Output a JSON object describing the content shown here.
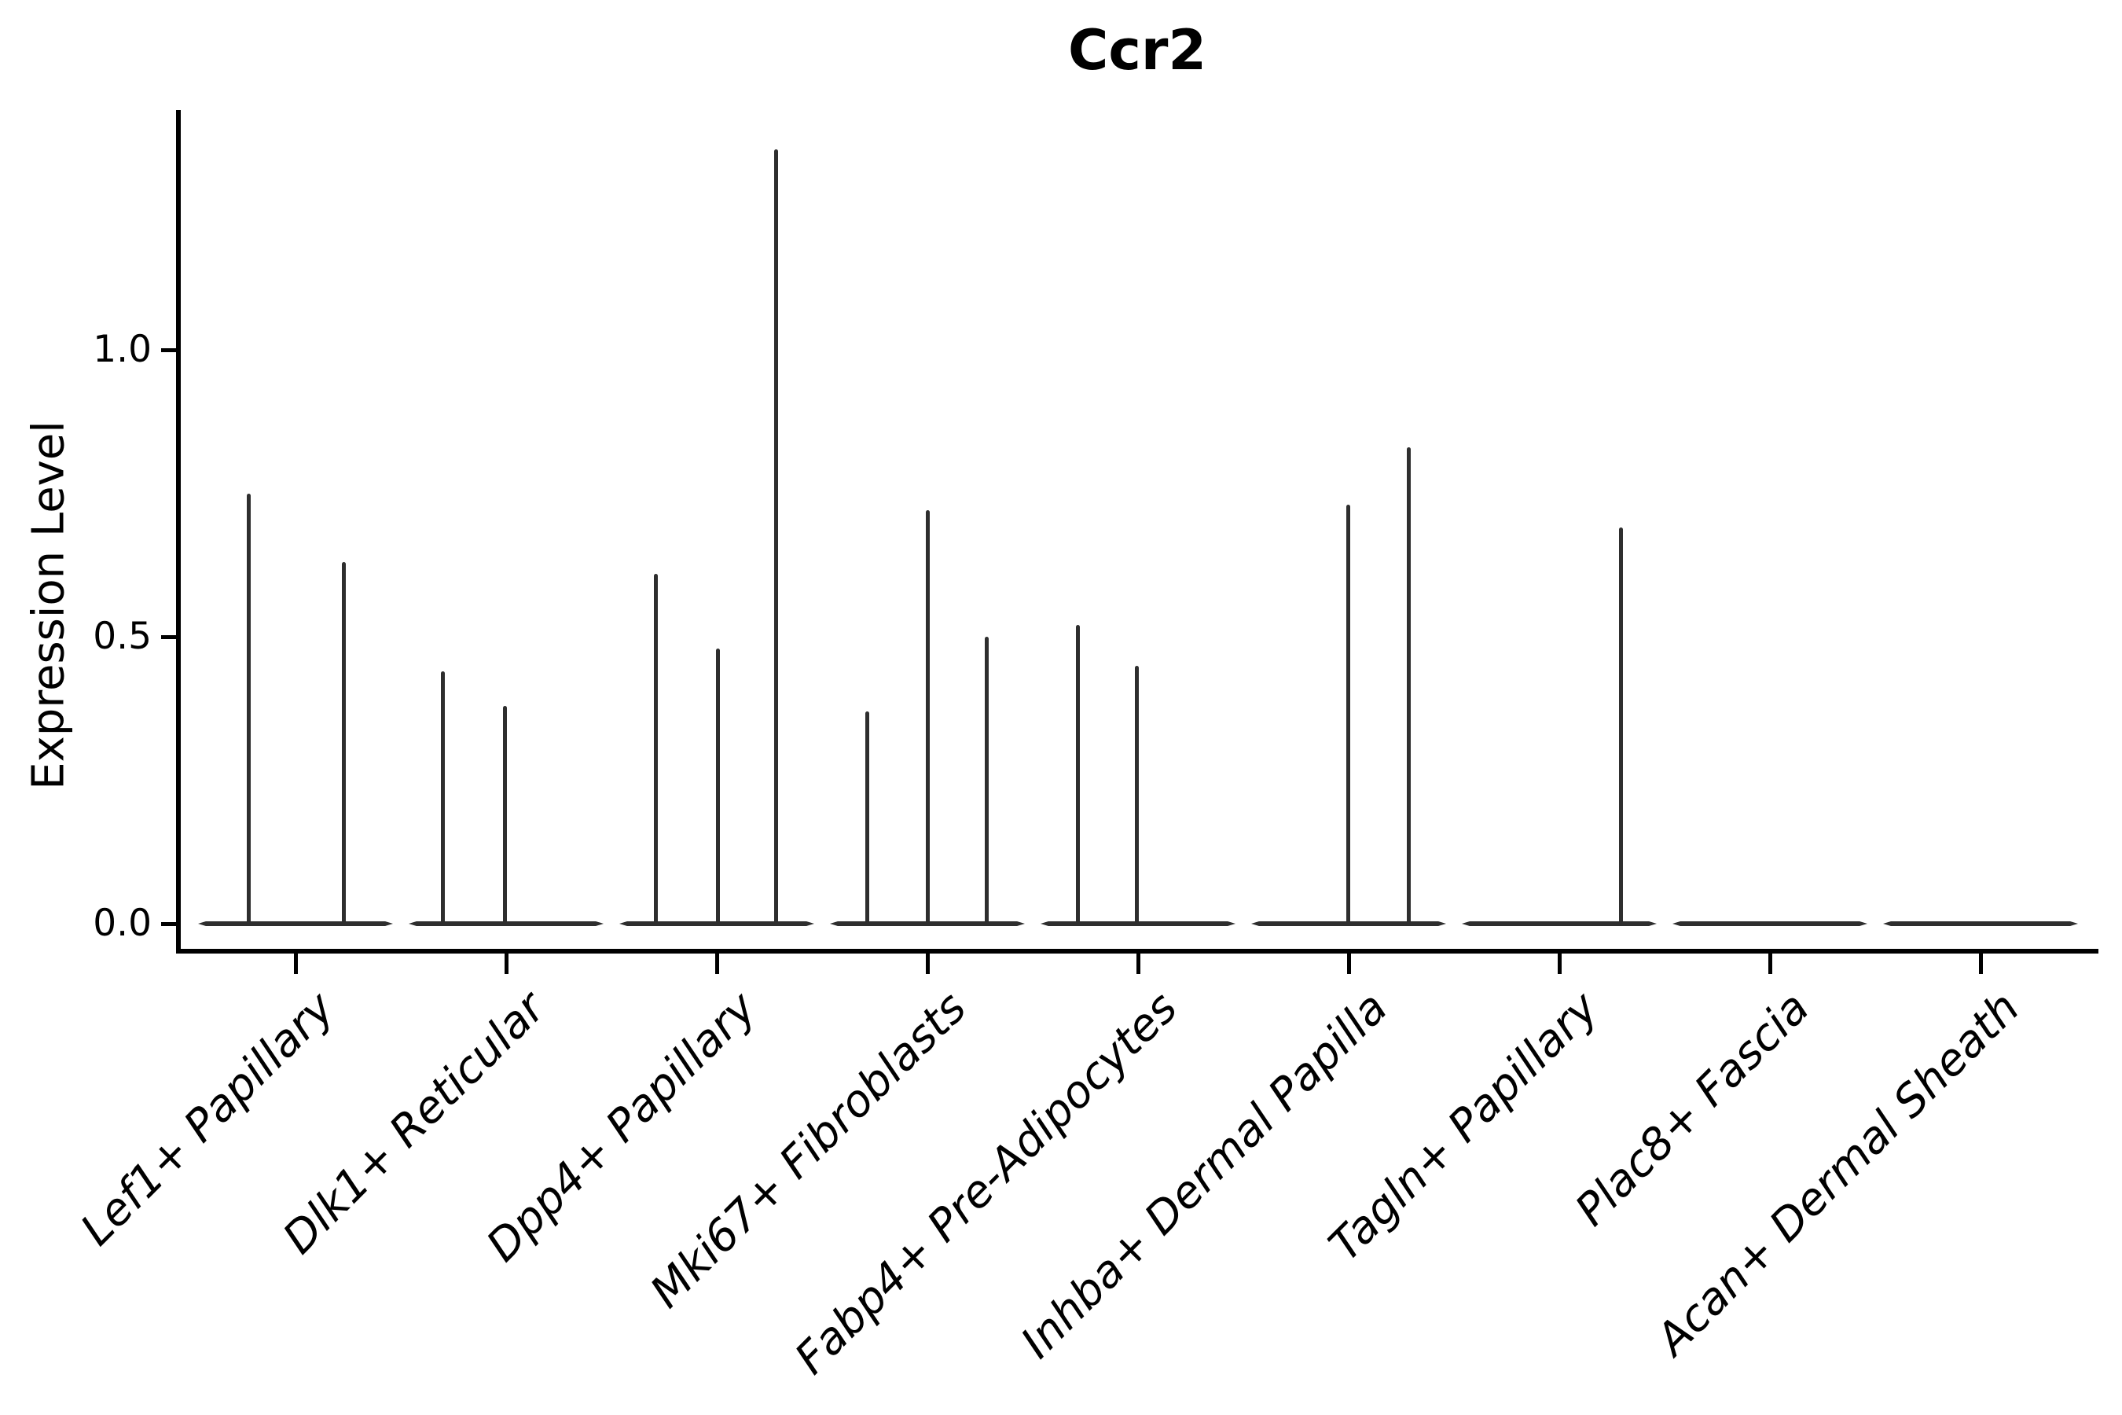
{
  "chart_data": {
    "type": "violin",
    "title": "Ccr2",
    "xlabel": "",
    "ylabel": "Expression Level",
    "ylim": [
      -0.05,
      1.42
    ],
    "grid": false,
    "legend": false,
    "yticks": [
      {
        "value": 0.0,
        "label": "0.0"
      },
      {
        "value": 0.5,
        "label": "0.5"
      },
      {
        "value": 1.0,
        "label": "1.0"
      }
    ],
    "description": "Violin plot of Ccr2 expression per fibroblast subtype; density is concentrated at 0 (flat violin bodies) with thin spikes reaching the maximum expressed values.",
    "categories": [
      {
        "label": "Lef1+ Papillary",
        "spikes": [
          {
            "dx": -60,
            "v": 0.75
          },
          {
            "dx": 61,
            "v": 0.63
          }
        ]
      },
      {
        "label": "Dlk1+ Reticular",
        "spikes": [
          {
            "dx": -81,
            "v": 0.44
          },
          {
            "dx": -2,
            "v": 0.38
          }
        ]
      },
      {
        "label": "Dpp4+ Papillary",
        "spikes": [
          {
            "dx": -78,
            "v": 0.61
          },
          {
            "dx": 1,
            "v": 0.48
          },
          {
            "dx": 75,
            "v": 1.35
          }
        ]
      },
      {
        "label": "Mki67+ Fibroblasts",
        "spikes": [
          {
            "dx": -77,
            "v": 0.37
          },
          {
            "dx": 0,
            "v": 0.72
          },
          {
            "dx": 75,
            "v": 0.5
          }
        ]
      },
      {
        "label": "Fabp4+ Pre-Adipocytes",
        "spikes": [
          {
            "dx": -77,
            "v": 0.52
          },
          {
            "dx": -2,
            "v": 0.45
          }
        ]
      },
      {
        "label": "Inhba+ Dermal Papilla",
        "spikes": [
          {
            "dx": -1,
            "v": 0.73
          },
          {
            "dx": 76,
            "v": 0.83
          }
        ]
      },
      {
        "label": "Tagln+ Papillary",
        "spikes": [
          {
            "dx": 78,
            "v": 0.69
          }
        ]
      },
      {
        "label": "Plac8+ Fascia",
        "spikes": []
      },
      {
        "label": "Acan+ Dermal Sheath",
        "spikes": []
      }
    ],
    "colors": {
      "violin": "#2e2e2e",
      "axis": "#000000",
      "text": "#000000"
    }
  }
}
